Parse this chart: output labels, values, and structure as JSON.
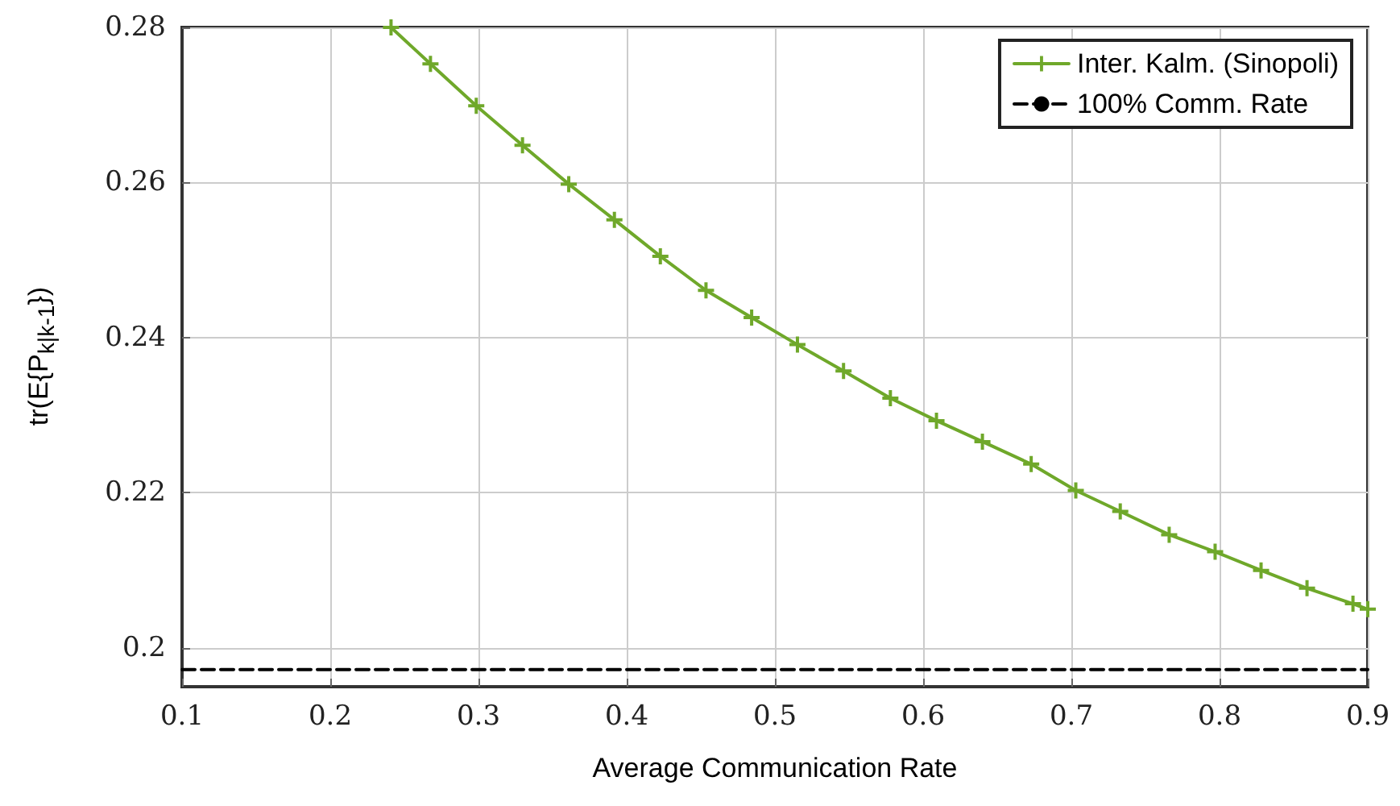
{
  "chart_data": {
    "type": "line",
    "xlabel": "Average Communication Rate",
    "ylabel": "tr(E{P$_{k|k-1}$})",
    "xlim": [
      0.1,
      0.9
    ],
    "ylim": [
      0.195,
      0.28
    ],
    "xticks": [
      0.1,
      0.2,
      0.3,
      0.4,
      0.5,
      0.6,
      0.7,
      0.8,
      0.9
    ],
    "yticks": [
      0.2,
      0.22,
      0.24,
      0.26,
      0.28
    ],
    "grid": true,
    "legend": "top right",
    "series": [
      {
        "name": "Inter. Kalm. (Sinopoli)",
        "color": "#6fa82a",
        "marker": "cross",
        "line_style": "solid",
        "x": [
          0.241,
          0.2676,
          0.2985,
          0.3297,
          0.3609,
          0.3917,
          0.4227,
          0.4535,
          0.4843,
          0.5152,
          0.5463,
          0.5779,
          0.609,
          0.64,
          0.6729,
          0.703,
          0.733,
          0.766,
          0.797,
          0.828,
          0.859,
          0.89,
          0.9
        ],
        "values": [
          0.28,
          0.2753,
          0.2699,
          0.2648,
          0.2598,
          0.2552,
          0.2505,
          0.2461,
          0.2426,
          0.2391,
          0.2357,
          0.2322,
          0.2293,
          0.2266,
          0.2237,
          0.2203,
          0.2176,
          0.2146,
          0.2124,
          0.21,
          0.2077,
          0.2057,
          0.205
        ]
      },
      {
        "name": "100% Comm. Rate",
        "color": "#000000",
        "marker": "none",
        "line_style": "dashed",
        "x": [
          0.1,
          0.9
        ],
        "values": [
          0.1972,
          0.1972
        ]
      }
    ]
  }
}
